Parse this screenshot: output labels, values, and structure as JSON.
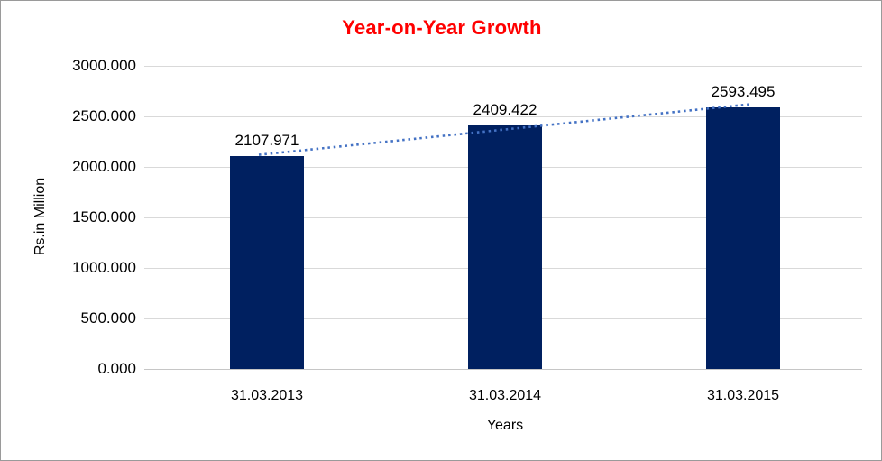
{
  "chart": {
    "title": "Year-on-Year Growth",
    "title_color": "#FF0000",
    "bar_color": "#002060",
    "trendline_color": "#4472C4",
    "gridline_color": "#D9D9D9",
    "axis_line_color": "#C6C6C6",
    "background_color": "#FFFFFF"
  },
  "chart_data": {
    "type": "bar",
    "title": "Year-on-Year Growth",
    "categories": [
      "31.03.2013",
      "31.03.2014",
      "31.03.2015"
    ],
    "values": [
      2107.971,
      2409.422,
      2593.495
    ],
    "data_labels": [
      "2107.971",
      "2409.422",
      "2593.495"
    ],
    "xlabel": "Years",
    "ylabel": "Rs.in Million",
    "ylim": [
      0,
      3000
    ],
    "ytick_interval": 500,
    "ytick_labels": [
      "0.000",
      "500.000",
      "1000.000",
      "1500.000",
      "2000.000",
      "2500.000",
      "3000.000"
    ],
    "grid": true,
    "legend": false,
    "series": [
      {
        "name": "Year-on-Year Growth",
        "values": [
          2107.971,
          2409.422,
          2593.495
        ]
      }
    ],
    "trendline": {
      "type": "linear",
      "style": "dotted",
      "applies_to": "Year-on-Year Growth"
    }
  }
}
